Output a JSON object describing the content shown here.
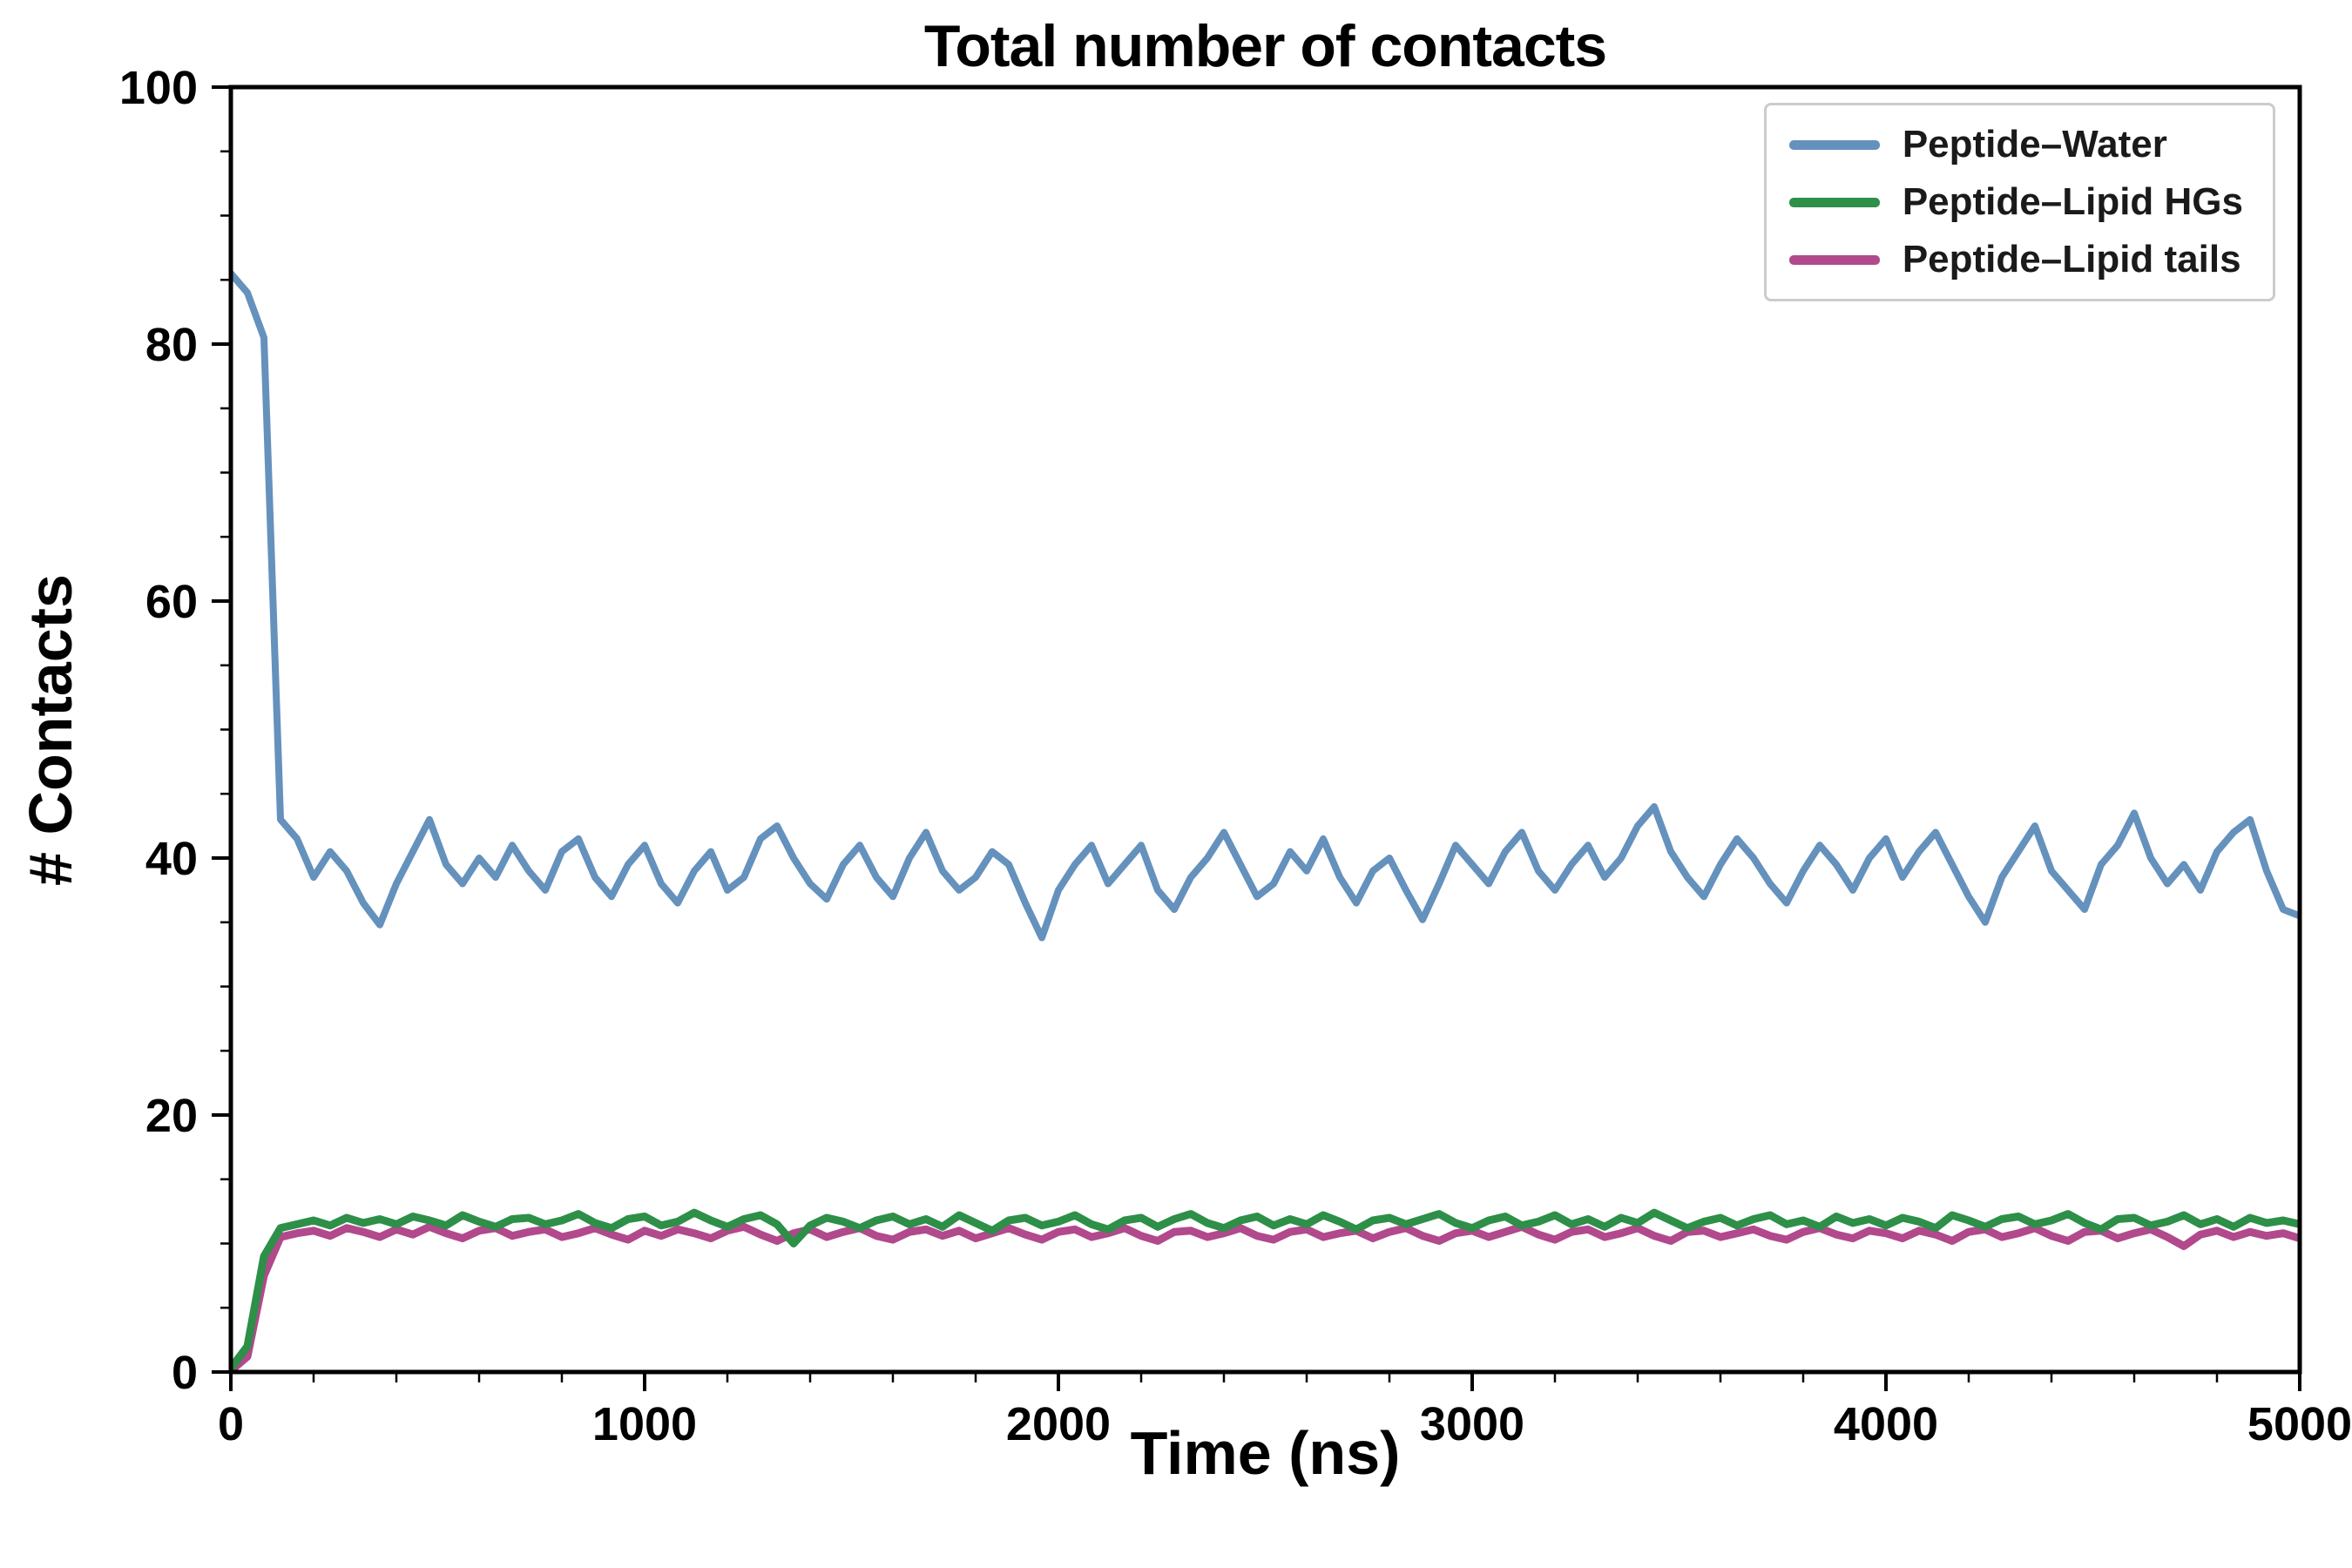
{
  "chart_data": {
    "type": "line",
    "title": "Total number of contacts",
    "xlabel": "Time (ns)",
    "ylabel": "# Contacts",
    "xlim": [
      0,
      5000
    ],
    "ylim": [
      0,
      100
    ],
    "xticks": [
      0,
      1000,
      2000,
      3000,
      4000,
      5000
    ],
    "yticks": [
      0,
      20,
      40,
      60,
      80,
      100
    ],
    "grid": false,
    "legend_position": "upper right",
    "x_start": 0,
    "x_step": 40,
    "series": [
      {
        "name": "Peptide–Water",
        "color": "#6591bd",
        "line_width": 8,
        "values": [
          85.5,
          84.0,
          80.5,
          43.0,
          41.5,
          38.5,
          40.5,
          39.0,
          36.5,
          34.8,
          38.0,
          40.5,
          43.0,
          39.5,
          38.0,
          40.0,
          38.5,
          41.0,
          39.0,
          37.5,
          40.5,
          41.5,
          38.5,
          37.0,
          39.5,
          41.0,
          38.0,
          36.5,
          39.0,
          40.5,
          37.5,
          38.5,
          41.5,
          42.5,
          40.0,
          38.0,
          36.8,
          39.5,
          41.0,
          38.5,
          37.0,
          40.0,
          42.0,
          39.0,
          37.5,
          38.5,
          40.5,
          39.5,
          36.5,
          33.8,
          37.5,
          39.5,
          41.0,
          38.0,
          39.5,
          41.0,
          37.5,
          36.0,
          38.5,
          40.0,
          42.0,
          39.5,
          37.0,
          38.0,
          40.5,
          39.0,
          41.5,
          38.5,
          36.5,
          39.0,
          40.0,
          37.5,
          35.2,
          38.0,
          41.0,
          39.5,
          38.0,
          40.5,
          42.0,
          39.0,
          37.5,
          39.5,
          41.0,
          38.5,
          40.0,
          42.5,
          44.0,
          40.5,
          38.5,
          37.0,
          39.5,
          41.5,
          40.0,
          38.0,
          36.5,
          39.0,
          41.0,
          39.5,
          37.5,
          40.0,
          41.5,
          38.5,
          40.5,
          42.0,
          39.5,
          37.0,
          35.0,
          38.5,
          40.5,
          42.5,
          39.0,
          37.5,
          36.0,
          39.5,
          41.0,
          43.5,
          40.0,
          38.0,
          39.5,
          37.5,
          40.5,
          42.0,
          43.0,
          39.0,
          36.0,
          35.5
        ]
      },
      {
        "name": "Peptide–Lipid HGs",
        "color": "#2e8f48",
        "line_width": 9,
        "values": [
          0.3,
          2.0,
          9.0,
          11.2,
          11.5,
          11.8,
          11.4,
          12.0,
          11.6,
          11.9,
          11.5,
          12.1,
          11.8,
          11.4,
          12.2,
          11.7,
          11.3,
          11.9,
          12.0,
          11.5,
          11.8,
          12.3,
          11.6,
          11.2,
          11.9,
          12.1,
          11.4,
          11.7,
          12.4,
          11.8,
          11.3,
          11.9,
          12.2,
          11.5,
          10.0,
          11.4,
          12.0,
          11.7,
          11.2,
          11.8,
          12.1,
          11.5,
          11.9,
          11.3,
          12.2,
          11.6,
          11.0,
          11.8,
          12.0,
          11.4,
          11.7,
          12.2,
          11.5,
          11.1,
          11.8,
          12.0,
          11.3,
          11.9,
          12.3,
          11.6,
          11.2,
          11.8,
          12.1,
          11.4,
          11.9,
          11.5,
          12.2,
          11.7,
          11.1,
          11.8,
          12.0,
          11.5,
          11.9,
          12.3,
          11.6,
          11.2,
          11.8,
          12.1,
          11.4,
          11.7,
          12.2,
          11.5,
          11.9,
          11.3,
          12.0,
          11.6,
          12.4,
          11.8,
          11.2,
          11.7,
          12.0,
          11.4,
          11.9,
          12.2,
          11.5,
          11.8,
          11.3,
          12.1,
          11.6,
          11.9,
          11.4,
          12.0,
          11.7,
          11.2,
          12.2,
          11.8,
          11.3,
          11.9,
          12.1,
          11.5,
          11.8,
          12.3,
          11.6,
          11.1,
          11.9,
          12.0,
          11.4,
          11.7,
          12.2,
          11.5,
          11.9,
          11.3,
          12.0,
          11.6,
          11.8,
          11.5
        ]
      },
      {
        "name": "Peptide–Lipid tails",
        "color": "#b1498c",
        "line_width": 9,
        "values": [
          0.1,
          1.2,
          7.5,
          10.5,
          10.8,
          11.0,
          10.6,
          11.2,
          10.9,
          10.5,
          11.1,
          10.7,
          11.3,
          10.8,
          10.4,
          11.0,
          11.2,
          10.6,
          10.9,
          11.1,
          10.5,
          10.8,
          11.2,
          10.7,
          10.3,
          11.0,
          10.6,
          11.1,
          10.8,
          10.4,
          11.0,
          11.3,
          10.7,
          10.2,
          10.8,
          11.1,
          10.5,
          10.9,
          11.2,
          10.6,
          10.3,
          10.9,
          11.1,
          10.6,
          11.0,
          10.4,
          10.8,
          11.2,
          10.7,
          10.3,
          10.9,
          11.1,
          10.5,
          10.8,
          11.2,
          10.6,
          10.2,
          10.9,
          11.0,
          10.5,
          10.8,
          11.2,
          10.6,
          10.3,
          10.9,
          11.1,
          10.5,
          10.8,
          11.0,
          10.4,
          10.9,
          11.2,
          10.6,
          10.2,
          10.8,
          11.0,
          10.5,
          10.9,
          11.3,
          10.7,
          10.3,
          10.9,
          11.1,
          10.5,
          10.8,
          11.2,
          10.6,
          10.2,
          10.9,
          11.0,
          10.5,
          10.8,
          11.1,
          10.6,
          10.3,
          10.9,
          11.2,
          10.7,
          10.4,
          11.0,
          10.8,
          10.4,
          11.0,
          10.7,
          10.2,
          10.9,
          11.1,
          10.5,
          10.8,
          11.2,
          10.6,
          10.2,
          10.9,
          11.0,
          10.4,
          10.8,
          11.1,
          10.5,
          9.8,
          10.7,
          11.0,
          10.5,
          10.9,
          10.6,
          10.8,
          10.4
        ]
      }
    ],
    "colors": {
      "background": "#ffffff",
      "axis": "#000000",
      "legend_border": "#cccccc"
    }
  }
}
